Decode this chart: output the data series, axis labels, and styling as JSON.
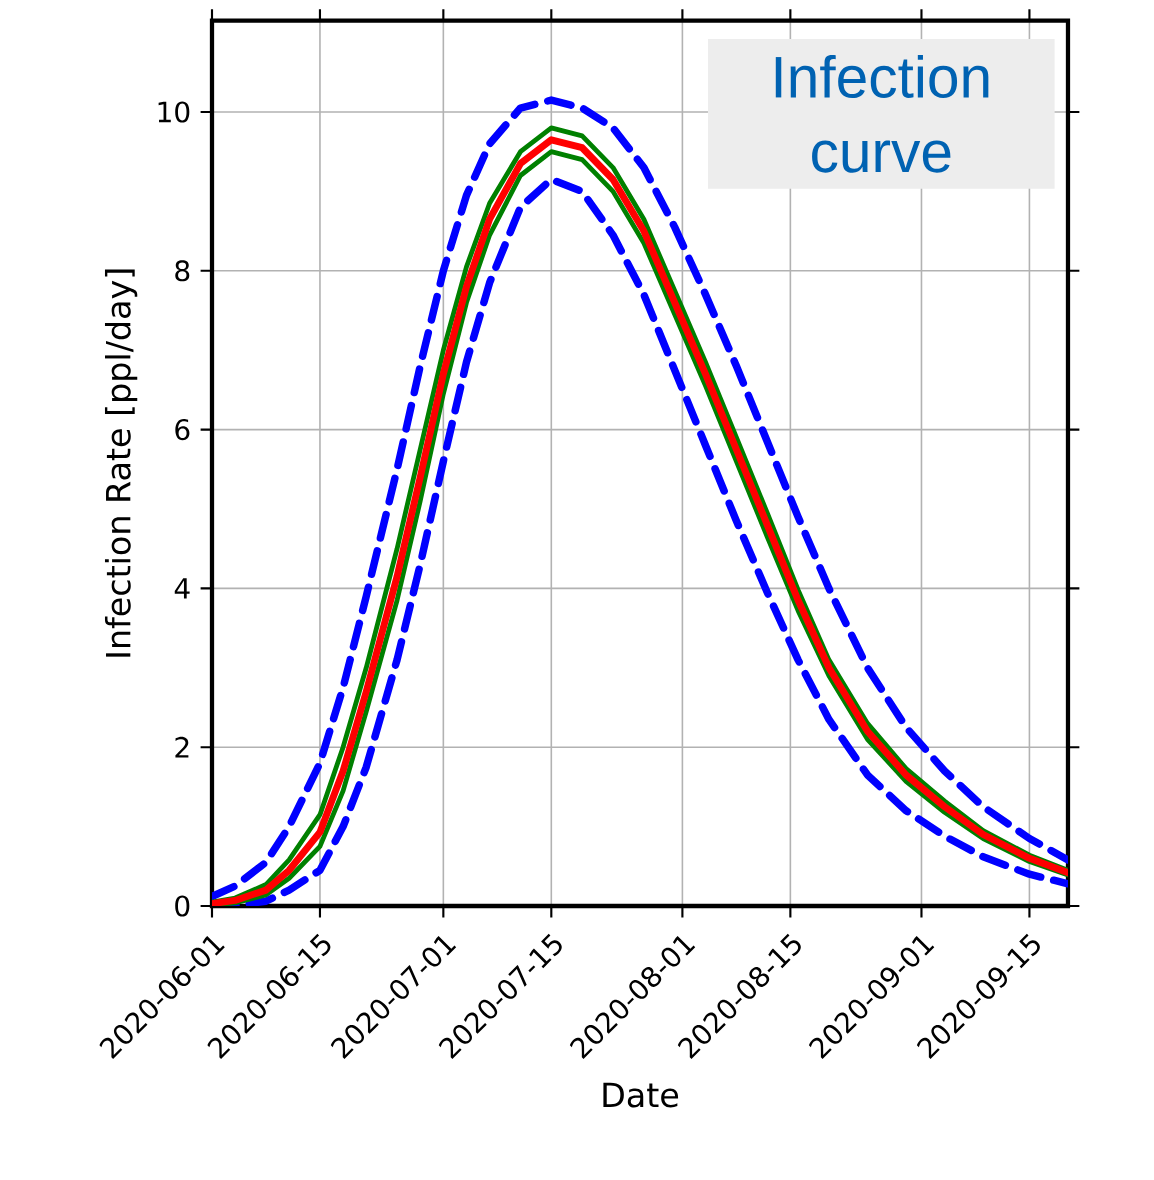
{
  "chart_data": {
    "type": "line",
    "xlabel": "Date",
    "ylabel": "Infection Rate [ppl/day]",
    "annotations": [
      "Infection curve"
    ],
    "x": [
      "2020-06-01",
      "2020-06-04",
      "2020-06-08",
      "2020-06-11",
      "2020-06-15",
      "2020-06-18",
      "2020-06-21",
      "2020-06-25",
      "2020-06-28",
      "2020-07-01",
      "2020-07-04",
      "2020-07-07",
      "2020-07-11",
      "2020-07-15",
      "2020-07-19",
      "2020-07-23",
      "2020-07-27",
      "2020-07-31",
      "2020-08-04",
      "2020-08-08",
      "2020-08-12",
      "2020-08-16",
      "2020-08-20",
      "2020-08-25",
      "2020-08-30",
      "2020-09-04",
      "2020-09-09",
      "2020-09-15",
      "2020-09-20"
    ],
    "series": [
      {
        "color": "#0000ff",
        "line_style": "dashed",
        "values": [
          0.12,
          0.25,
          0.55,
          1.0,
          1.8,
          2.75,
          3.9,
          5.5,
          6.8,
          8.0,
          8.95,
          9.6,
          10.05,
          10.15,
          10.05,
          9.8,
          9.3,
          8.55,
          7.7,
          6.8,
          5.85,
          4.9,
          4.0,
          3.0,
          2.25,
          1.7,
          1.25,
          0.85,
          0.58
        ]
      },
      {
        "color": "#0000ff",
        "line_style": "dashed",
        "values": [
          0,
          0.01,
          0.06,
          0.2,
          0.45,
          1.0,
          1.75,
          3.1,
          4.3,
          5.6,
          6.85,
          7.85,
          8.8,
          9.15,
          9.0,
          8.45,
          7.7,
          6.75,
          5.8,
          4.85,
          3.95,
          3.1,
          2.35,
          1.65,
          1.2,
          0.88,
          0.62,
          0.4,
          0.28
        ]
      },
      {
        "color": "#008000",
        "values": [
          0.05,
          0.1,
          0.27,
          0.58,
          1.15,
          2.0,
          3.0,
          4.5,
          5.75,
          7.0,
          8.05,
          8.85,
          9.5,
          9.8,
          9.7,
          9.3,
          8.65,
          7.75,
          6.85,
          5.9,
          4.95,
          3.98,
          3.1,
          2.3,
          1.73,
          1.32,
          0.95,
          0.64,
          0.45
        ]
      },
      {
        "color": "#008000",
        "values": [
          0.01,
          0.04,
          0.14,
          0.35,
          0.75,
          1.45,
          2.45,
          3.85,
          5.1,
          6.45,
          7.6,
          8.45,
          9.2,
          9.5,
          9.4,
          9.0,
          8.35,
          7.45,
          6.55,
          5.6,
          4.65,
          3.72,
          2.9,
          2.1,
          1.57,
          1.18,
          0.85,
          0.56,
          0.39
        ]
      },
      {
        "color": "#ff0000",
        "values": [
          0.03,
          0.07,
          0.2,
          0.45,
          0.93,
          1.7,
          2.7,
          4.15,
          5.4,
          6.7,
          7.8,
          8.65,
          9.35,
          9.65,
          9.55,
          9.15,
          8.5,
          7.6,
          6.7,
          5.75,
          4.8,
          3.85,
          3.0,
          2.2,
          1.65,
          1.25,
          0.9,
          0.6,
          0.42
        ]
      }
    ],
    "xlim": [
      "2020-06-01",
      "2020-09-20"
    ],
    "xticks": [
      "2020-06-01",
      "2020-06-15",
      "2020-07-01",
      "2020-07-15",
      "2020-08-01",
      "2020-08-15",
      "2020-09-01",
      "2020-09-15"
    ],
    "ylim": [
      0,
      11.15
    ],
    "yticks": [
      0,
      2,
      4,
      6,
      8,
      10
    ],
    "grid": true
  }
}
